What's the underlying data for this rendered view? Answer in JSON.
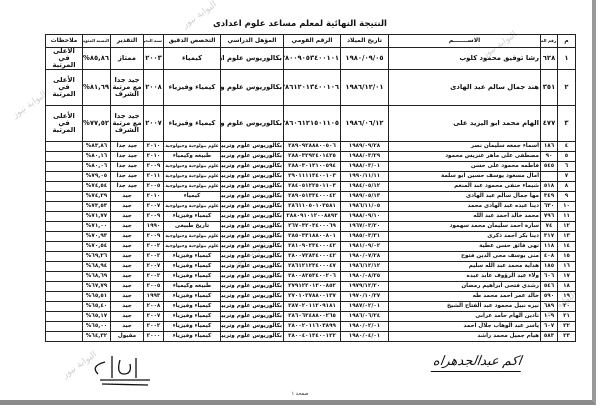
{
  "title": "النتيجة النهائية لمعلم مساعد علوم اعدادى",
  "columns": [
    "م",
    "رقم الملف",
    "الاســـــــم",
    "تاريخ الميلاد",
    "الرقم القومي",
    "المؤهل الدراسي",
    "التخصص الدقيق",
    "سنة التخرج",
    "التقدير",
    "النسبة المئوية",
    "ملاحظات"
  ],
  "rows": [
    [
      "١",
      "٦٢٨",
      "رشا توفيق محمود كلوب",
      "١٩٨٠/٠٩/٠٥",
      "٢٨٠٠٩٠٥٣٤٠٠١٠١",
      "بكالوريوس علوم ازهر",
      "كيمياء",
      "٢٠٠٣",
      "ممتاز",
      "٨٥,٨٦%",
      "الأعلى في المرتبة"
    ],
    [
      "٢",
      "٣٥١",
      "هند جمال سالم عبد الهادى",
      "١٩٨٦/١٢/٠١",
      "٢٨٦١٢٠١٣٤٠٠١٠٦",
      "بكالوريوس علوم وتربية",
      "كيمياء وفيزياء",
      "٢٠٠٨",
      "جيد جدا مع مرتبة الشرف",
      "٨١,٦٩%",
      "الأعلى في المرتبة"
    ],
    [
      "٣",
      "٤٧٧",
      "الهام محمد ابو اليزيد على",
      "١٩٨٦/٠٦/١٢",
      "٢٨٦٠٦١٢١٥٠١١٠٥",
      "بكالوريوس علوم وتربية",
      "كيمياء وفيزياء",
      "٢٠٠٧",
      "جيد جدا مع مرتبة الشرف",
      "٧٧,٥٢%",
      "الأعلى في المرتبة"
    ],
    [
      "٤",
      "١٨٦",
      "اسماء جمعه سليمان نصر",
      "١٩٨٩/٠٩/٢٨",
      "٢٨٩٠٩٢٨٨٨٠٠٥٠٦",
      "بكالوريوس علوم وتربية",
      "علوم بيولوجية وجيولوجية",
      "٢٠١٠",
      "جيد جدا",
      "٨٣,٨٦%",
      ""
    ],
    [
      "٥",
      "٩٠",
      "مصطفى على ماهر عتريس محمود",
      "١٩٨٨/٠٣/٢٩",
      "٢٨٨٠٣٢٩٢٤٠١٤٢٥",
      "بكالوريوس علوم وتربية",
      "طبيعه وكيمياء",
      "٢٠١٠",
      "جيد جدا",
      "٨٠,١٦%",
      ""
    ],
    [
      "٦",
      "٥٤٥",
      "فاطمه محمود على حسن",
      "١٩٨٨/٠٣/٠١",
      "٢٨٨٠٣٠١٣١٠٠٥٩٤",
      "بكالوريوس علوم وتربية",
      "علوم بيولوجية وجيولوجية",
      "٢٠٠٩",
      "جيد جدا",
      "٨٠,٠٦%",
      ""
    ],
    [
      "٧",
      "",
      "امال مسعود يوسف حسين ابو سلمة",
      "١٩٩٠/١١/١١",
      "٢٩٠١١١١٣٤٠٠١٠٣",
      "بكالوريوس علوم وتربية",
      "علوم بيولوجية وجيولوجية",
      "٢٠١١",
      "جيد جدا",
      "٧٩,٠٥%",
      ""
    ],
    [
      "٨",
      "٥١٨",
      "شيماء حنفى محمود عبد المنعم",
      "١٩٨٤/٠٥/١٢",
      "٢٨٤٠٥١٢٢٥٠١١٠٣",
      "بكالوريوس علوم وتربية",
      "علوم بيولوجية وجيولوجية",
      "٢٠٠٥",
      "جيد جدا",
      "٧٤,٥٤%",
      ""
    ],
    [
      "٩",
      "٣٤٩",
      "مها جمال سالم عبد الهادى",
      "١٩٨٩/٠٥/١٣",
      "٢٨٩٠٥١٣٣٤٠٠٠٤٢",
      "بكالوريوس علوم وتربية",
      "كيمياء",
      "٢٠١٠",
      "جيد",
      "٧٤,٢٩%",
      ""
    ],
    [
      "١٠",
      "٦٣٠",
      "دينا عبده عبد الهادى محمد",
      "١٩٨٦/١١/٠٥",
      "٢٨٦١١٠٥٠١٠٣٥٨١",
      "بكالوريوس علوم وتربية",
      "علوم بيولوجية وجيولوجية",
      "٢٠٠٧",
      "جيد",
      "٧٣,٥٣%",
      ""
    ],
    [
      "١١",
      "٧٩٦",
      "محمد خالد احمد عبد الله",
      "١٩٨٨/٠٩/١٠",
      "٢٨٨٠٩١٠١٢٠٠٨٨٩٢",
      "بكالوريوس علوم وتربية",
      "كيمياء وفيزياء",
      "٢٠٠٩",
      "جيد",
      "٧١,٧٧%",
      ""
    ],
    [
      "١٢",
      "٧٤",
      "سارة احمد سليمان محمد سهمود",
      "١٩٦٧/٠٣/٢٠",
      "٢٦٧٠٣٢٠٣٤٠٠٠٦٩",
      "بكالوريوس علوم وتربية",
      "تاريخ طبيعى",
      "١٩٩٠",
      "جيد",
      "٧١,٠٠%",
      ""
    ],
    [
      "١٣",
      "٣١٧",
      "دينا بكر احمد ذكرى",
      "١٩٨٥/٠٣/٣١",
      "٢٨٥٠٣٣١٨٨٠٠٨٠١",
      "بكالوريوس علوم وتربية",
      "علوم بيولوجية وجيولوجية",
      "٢٠٠٩",
      "جيد",
      "٧٠,٩٣%",
      ""
    ],
    [
      "١٤",
      "١١٨",
      "نهى فائق حسن عطية",
      "١٩٨١/٠٩/٠٢",
      "٢٨١٠٩٠٢٣٤٠٠٠٤٢",
      "بكالوريوس علوم وتربية",
      "علوم بيولوجية وجيولوجية",
      "٢٠٠٢",
      "جيد",
      "٧٠,٥٤%",
      ""
    ],
    [
      "١٥",
      "٤٠٨",
      "منى يوسف محى الدين فتوح",
      "١٩٨٠/٠٧/٢٨",
      "٢٨٠٠٧٢٨٣٤٠٠٠٤٢",
      "بكالوريوس علوم وتربية",
      "كيمياء وفيزياء",
      "٢٠٠٢",
      "جيد",
      "٦٩,٢٦%",
      ""
    ],
    [
      "١٦",
      "١٨٥",
      "هداية محمد عبد الله سليم",
      "١٩٨٦/١٢/١٢",
      "٢٨٦١٢١٢٣٤٠٠٠٤٧",
      "بكالوريوس علوم وتربية",
      "كيمياء وفيزياء",
      "٢٠٠٧",
      "جيد",
      "٦٨,٩٤%",
      ""
    ],
    [
      "١٧",
      "٦٠٦",
      "ولاء عبد الرؤوف عابد عبده",
      "١٩٨٠/٠٨/٢٥",
      "٢٨٠٠٨٢٥٣٤٠٠٢٠٦",
      "بكالوريوس علوم وتربية",
      "كيمياء وفيزياء",
      "٢٠٠٢",
      "جيد",
      "٦٨,٦٩%",
      ""
    ],
    [
      "١٨",
      "٥٤٦",
      "رشدى فتحى ابراهيم رمضان",
      "١٩٧٩/١٢/٢٠",
      "٢٧٩١٢٢٠١٢٠٠٨٥٢",
      "بكالوريوس علوم وتربية",
      "طبيعه وكيمياء",
      "٢٠٠٥",
      "جيد",
      "٦٧,٧٩%",
      ""
    ],
    [
      "١٩",
      "٥٩٠",
      "خالد عمر احمد محمد طه",
      "١٩٧٠/١٠/٢٧",
      "٢٧٠١٠٢٧٨٨٠٠١٣٧",
      "بكالوريوس علوم وتربية",
      "كيمياء وفيزياء",
      "١٩٩٣",
      "جيد",
      "٦٥,٥١%",
      ""
    ],
    [
      "٢٠",
      "٦٨٩",
      "نيره نبيل محمود عبد الفتاح الشيخ",
      "١٩٨٧/٠٢/٠١",
      "٢٨٧٠٢٠١١٢٠٩١٨١",
      "بكالوريوس علوم وتربية",
      "كيمياء وفيزياء",
      "٢٠٠٨",
      "جيد",
      "٦٥,٤٠%",
      ""
    ],
    [
      "٢١",
      "١٠٩",
      "نادين الهام حامد عرابى",
      "١٩٨٦/٠٦/٢٤",
      "٢٨٦٠٦٢٤٨٨٠٠٢٦٥",
      "بكالوريوس علوم وتربية",
      "كيمياء وفيزياء",
      "٢٠٠٧",
      "جيد",
      "٦٥,١٧%",
      ""
    ],
    [
      "٢٢",
      "٦٠٧",
      "ياسر عبد الوهاب جلال احمد",
      "١٩٨٠/٠٢/٠١",
      "٢٨٠٠٢٠١١٦٠٣٨٩٩",
      "بكالوريوس علوم وتربية",
      "كيمياء وفيزياء",
      "٢٠٠٢",
      "جيد",
      "٦٥,٠٠%",
      ""
    ],
    [
      "٢٣",
      "٥٨٣",
      "هيام جميل محمد راشد",
      "١٩٨٠/٠٤/٠١",
      "٢٨٠٠٤٠١٣٤٠٠١٢٢",
      "بكالوريوس علوم وتربية",
      "كيمياء وفيزياء",
      "٢٠٠٠",
      "مقبول",
      "٦٤,٣٢%",
      ""
    ]
  ],
  "footer": {
    "page_label": "صفحة ١",
    "signature_right": "اكم عبدالجدهراه"
  },
  "watermark": "البوابة نيوز"
}
